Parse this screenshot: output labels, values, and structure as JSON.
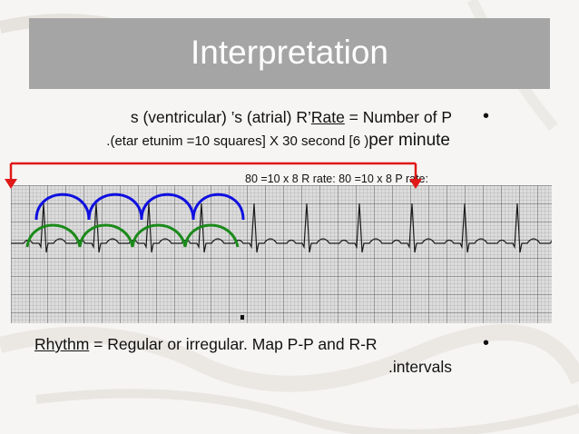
{
  "title": "Interpretation",
  "bullets": {
    "symbol": "•",
    "rate": {
      "pre": "s (ventricular) ’s (atrial) R’",
      "keyword": "Rate",
      "post": " = Number of P",
      "line2_a": ".(etar etunim =10 squares] X 30 second [6 )",
      "line2_b": "per  minute"
    },
    "rhythm": {
      "keyword": "Rhythm",
      "post": " = Regular or irregular. Map P-P and R-R",
      "line2": ".intervals"
    }
  },
  "annotation": {
    "rate_calc": "80 =10 x 8 R rate: 80 =10 x 8 P rate:"
  },
  "colors": {
    "title_bar": "#a5a5a5",
    "rr_arcs": "#1010e0",
    "pp_arcs": "#1a8a1a",
    "bracket": "#e01818",
    "grid": "#8a8a8a",
    "trace": "#1a1a1a"
  }
}
